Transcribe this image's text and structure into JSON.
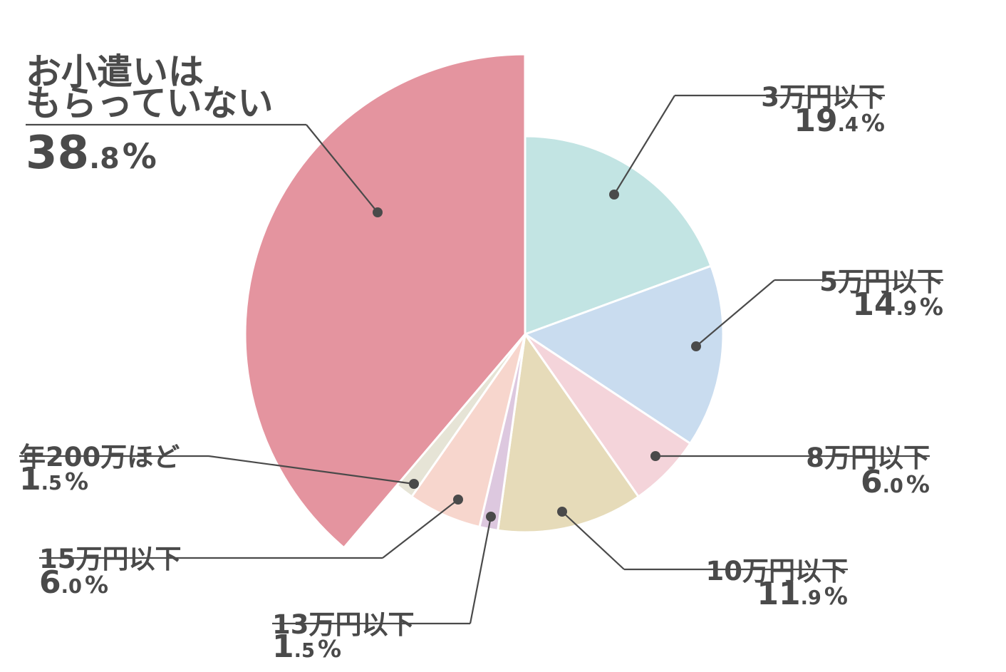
{
  "chart_data": {
    "type": "pie",
    "unit": "%",
    "colors": {
      "text": "#4a4a4a",
      "leader": "#4a4a4a",
      "separator": "#ffffff",
      "slices": [
        "#e4949f",
        "#c2e4e3",
        "#c9dcef",
        "#f4d4da",
        "#e6dbb9",
        "#ddc8df",
        "#f7d6cd",
        "#e6e4d6"
      ]
    },
    "slices": [
      {
        "label_lines": [
          "お小遣いは",
          "もらっていない"
        ],
        "value": 38.8,
        "value_int": "38",
        "value_dec": ".8",
        "exploded": true
      },
      {
        "label_lines": [
          "3万円以下"
        ],
        "value": 19.4,
        "value_int": "19",
        "value_dec": ".4"
      },
      {
        "label_lines": [
          "5万円以下"
        ],
        "value": 14.9,
        "value_int": "14",
        "value_dec": ".9"
      },
      {
        "label_lines": [
          "8万円以下"
        ],
        "value": 6.0,
        "value_int": "6",
        "value_dec": ".0"
      },
      {
        "label_lines": [
          "10万円以下"
        ],
        "value": 11.9,
        "value_int": "11",
        "value_dec": ".9"
      },
      {
        "label_lines": [
          "13万円以下"
        ],
        "value": 1.5,
        "value_int": "1",
        "value_dec": ".5"
      },
      {
        "label_lines": [
          "15万円以下"
        ],
        "value": 6.0,
        "value_int": "6",
        "value_dec": ".0"
      },
      {
        "label_lines": [
          "年200万ほど"
        ],
        "value": 1.5,
        "value_int": "1",
        "value_dec": ".5"
      }
    ]
  }
}
